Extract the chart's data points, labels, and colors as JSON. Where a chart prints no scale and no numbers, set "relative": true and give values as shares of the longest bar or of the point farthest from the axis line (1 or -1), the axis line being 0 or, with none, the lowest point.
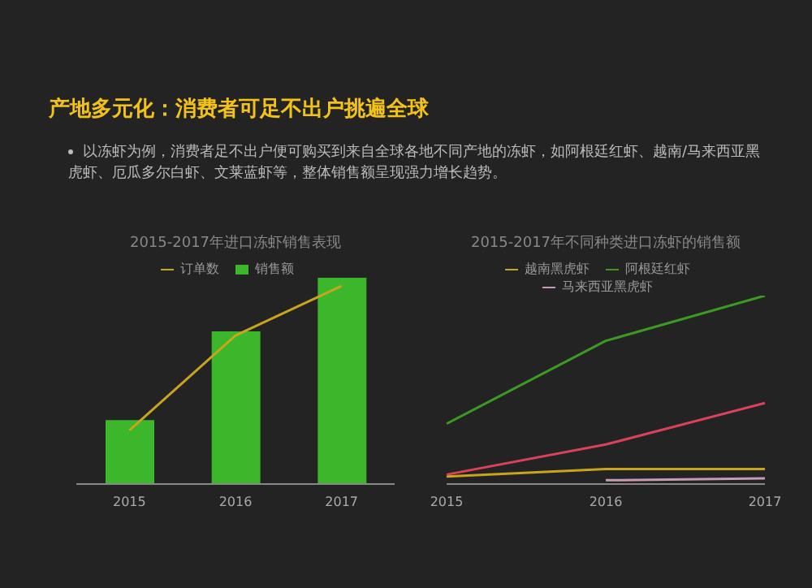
{
  "chart_data": [
    {
      "type": "other",
      "title": "产地多元化：消费者可足不出户挑遍全球",
      "annotations": [
        "以冻虾为例，消费者足不出户便可购买到来自全球各地不同产地的冻虾，如阿根廷红虾、越南/马来西亚黑虎虾、厄瓜多尔白虾、文莱蓝虾等，整体销售额呈现强力增长趋势。"
      ]
    },
    {
      "type": "bar",
      "title": "2015-2017年进口冻虾销售表现",
      "categories": [
        "2015",
        "2016",
        "2017"
      ],
      "relative": true,
      "legend": "top",
      "series": [
        {
          "name": "销售额",
          "type": "bar",
          "color": "#3cb62a",
          "values": [
            0.31,
            0.74,
            1
          ]
        },
        {
          "name": "订单数",
          "type": "line",
          "color": "#c9a41d",
          "values": [
            0.26,
            0.72,
            0.96
          ]
        }
      ]
    },
    {
      "type": "line",
      "title": "2015-2017年不同种类进口冻虾的销售额",
      "categories": [
        "2015",
        "2016",
        "2017"
      ],
      "relative": true,
      "legend": "top",
      "series": [
        {
          "name": "阿根廷红虾",
          "color": "#3c9a22",
          "values": [
            0.32,
            0.76,
            1
          ]
        },
        {
          "name": "越南黑虎虾",
          "color": "#c9a41d",
          "values": [
            0.04,
            0.08,
            0.08
          ]
        },
        {
          "name": "马来西亚黑虎虾",
          "color": "#c79ab8",
          "values": [
            null,
            0.02,
            0.03
          ]
        },
        {
          "color": "#d9435a",
          "values": [
            0.05,
            0.21,
            0.43
          ]
        }
      ]
    }
  ]
}
